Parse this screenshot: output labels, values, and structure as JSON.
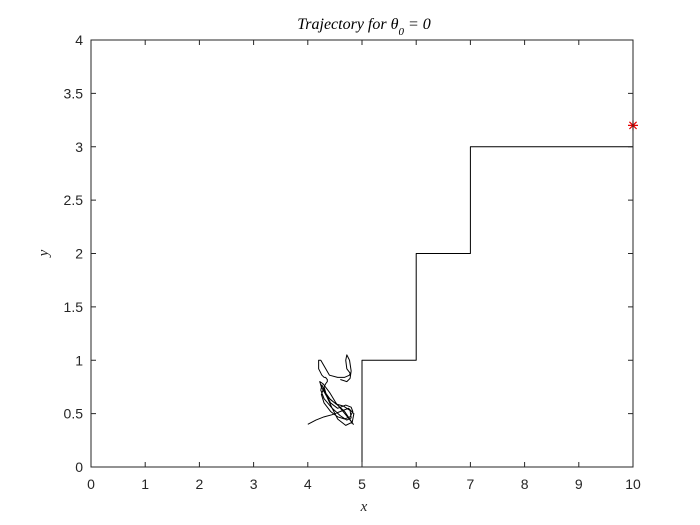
{
  "chart_data": {
    "type": "line",
    "title": {
      "main": "Trajectory for θ",
      "subscript": "0",
      "suffix": " = 0"
    },
    "xlabel": "x",
    "ylabel": "y",
    "xlim": [
      0,
      10
    ],
    "ylim": [
      0,
      4
    ],
    "xticks": [
      0,
      1,
      2,
      3,
      4,
      5,
      6,
      7,
      8,
      9,
      10
    ],
    "yticks": [
      0,
      0.5,
      1,
      1.5,
      2,
      2.5,
      3,
      3.5,
      4
    ],
    "xtick_labels": [
      "0",
      "1",
      "2",
      "3",
      "4",
      "5",
      "6",
      "7",
      "8",
      "9",
      "10"
    ],
    "ytick_labels": [
      "0",
      "0.5",
      "1",
      "1.5",
      "2",
      "2.5",
      "3",
      "3.5",
      "4"
    ],
    "grid": false,
    "series": [
      {
        "style": "line",
        "color": "#000000",
        "x": [
          5.0,
          5.0,
          6.0,
          6.0,
          7.0,
          7.0,
          10.0
        ],
        "y": [
          0.0,
          1.0,
          1.0,
          2.0,
          2.0,
          3.0,
          3.0
        ]
      },
      {
        "style": "line",
        "color": "#000000",
        "x": [
          4.0,
          4.15,
          4.3,
          4.45,
          4.6,
          4.75,
          4.85,
          4.82,
          4.7,
          4.55,
          4.45,
          4.35,
          4.25,
          4.22,
          4.28,
          4.4,
          4.52,
          4.65,
          4.78,
          4.84,
          4.8,
          4.68,
          4.55,
          4.42,
          4.32,
          4.26,
          4.24,
          4.3,
          4.45,
          4.6,
          4.72,
          4.8,
          4.78,
          4.66,
          4.52,
          4.38,
          4.28,
          4.25,
          4.3,
          4.42,
          4.55,
          4.68,
          4.78,
          4.83,
          4.8,
          4.7,
          4.55,
          4.42,
          4.34,
          4.3,
          4.33,
          4.36,
          4.36,
          4.34,
          4.33,
          4.3,
          4.26,
          4.2,
          4.2,
          4.24,
          4.4,
          4.55,
          4.68,
          4.77,
          4.78,
          4.72,
          4.7,
          4.72,
          4.77,
          4.8,
          4.78,
          4.72,
          4.6
        ],
        "y": [
          0.4,
          0.44,
          0.47,
          0.49,
          0.52,
          0.55,
          0.5,
          0.42,
          0.39,
          0.45,
          0.55,
          0.66,
          0.75,
          0.8,
          0.78,
          0.7,
          0.6,
          0.52,
          0.44,
          0.4,
          0.43,
          0.52,
          0.58,
          0.63,
          0.7,
          0.77,
          0.72,
          0.64,
          0.55,
          0.48,
          0.44,
          0.46,
          0.53,
          0.57,
          0.59,
          0.65,
          0.72,
          0.68,
          0.6,
          0.52,
          0.47,
          0.45,
          0.47,
          0.52,
          0.56,
          0.58,
          0.55,
          0.6,
          0.68,
          0.75,
          0.78,
          0.8,
          0.82,
          0.83,
          0.84,
          0.84,
          0.86,
          0.92,
          1.0,
          1.0,
          0.86,
          0.84,
          0.84,
          0.86,
          0.88,
          0.92,
          1.0,
          1.05,
          1.0,
          0.9,
          0.83,
          0.8,
          0.82
        ]
      },
      {
        "style": "marker",
        "marker": "asterisk",
        "color": "#e60000",
        "x": [
          10.0
        ],
        "y": [
          3.2
        ]
      }
    ]
  }
}
